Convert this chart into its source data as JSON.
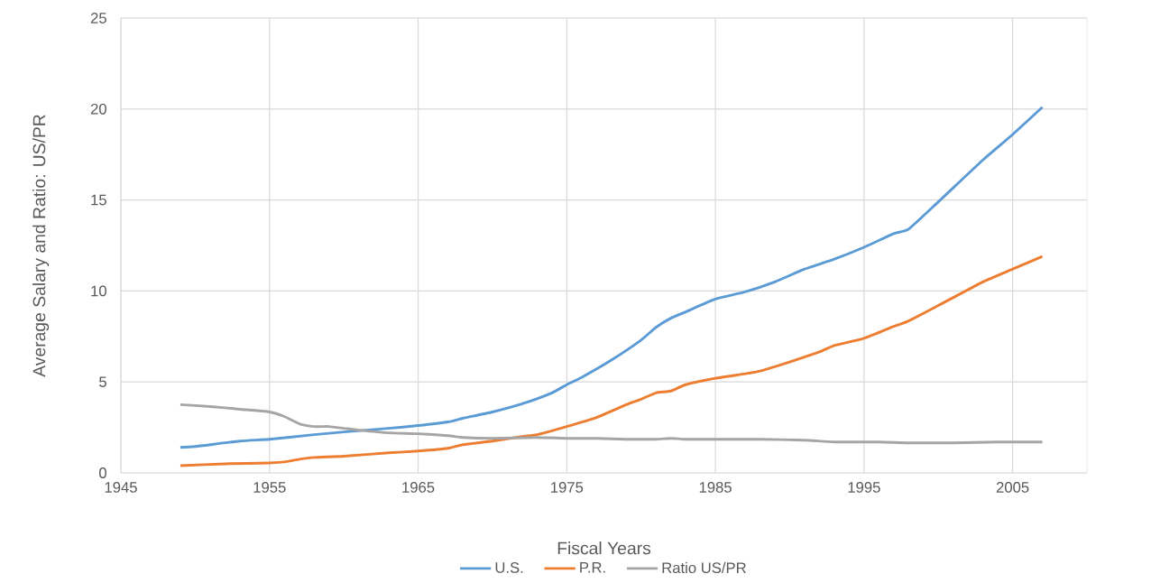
{
  "chart_data": {
    "type": "line",
    "xlabel": "Fiscal Years",
    "ylabel": "Average Salary and Ratio: US/PR",
    "xlim": [
      1945,
      2010
    ],
    "xticks": [
      1945,
      1955,
      1965,
      1975,
      1985,
      1995,
      2005
    ],
    "ylim": [
      0,
      25
    ],
    "yticks": [
      0,
      5,
      10,
      15,
      20,
      25
    ],
    "grid": true,
    "legend": "bottom",
    "series": [
      {
        "name": "U.S.",
        "color": "#5b9bd5",
        "x": [
          1949,
          1950,
          1953,
          1955,
          1958,
          1960,
          1963,
          1965,
          1967,
          1968,
          1970,
          1972,
          1974,
          1975,
          1976,
          1978,
          1980,
          1981,
          1982,
          1983,
          1985,
          1987,
          1989,
          1991,
          1993,
          1995,
          1997,
          1998,
          2000,
          2003,
          2005,
          2007
        ],
        "values": [
          1.4,
          1.45,
          1.75,
          1.85,
          2.1,
          2.25,
          2.45,
          2.6,
          2.8,
          3.0,
          3.35,
          3.8,
          4.4,
          4.85,
          5.25,
          6.2,
          7.3,
          8.0,
          8.5,
          8.85,
          9.55,
          9.95,
          10.5,
          11.2,
          11.75,
          12.4,
          13.15,
          13.4,
          14.9,
          17.2,
          18.6,
          20.1
        ]
      },
      {
        "name": "P.R.",
        "color": "#ed7d31",
        "x": [
          1949,
          1952,
          1955,
          1956,
          1957,
          1958,
          1960,
          1963,
          1965,
          1967,
          1968,
          1970,
          1972,
          1973,
          1975,
          1977,
          1979,
          1980,
          1981,
          1982,
          1983,
          1985,
          1987,
          1988,
          1990,
          1992,
          1993,
          1995,
          1997,
          1998,
          2000,
          2003,
          2005,
          2007
        ],
        "values": [
          0.4,
          0.5,
          0.55,
          0.6,
          0.75,
          0.85,
          0.92,
          1.1,
          1.2,
          1.35,
          1.55,
          1.75,
          2.0,
          2.1,
          2.55,
          3.05,
          3.75,
          4.05,
          4.4,
          4.5,
          4.85,
          5.2,
          5.45,
          5.6,
          6.1,
          6.65,
          7.0,
          7.4,
          8.05,
          8.35,
          9.2,
          10.5,
          11.2,
          11.9
        ]
      },
      {
        "name": "Ratio US/PR",
        "color": "#a5a5a5",
        "x": [
          1949,
          1951,
          1953,
          1955,
          1956,
          1957,
          1958,
          1959,
          1960,
          1961,
          1963,
          1965,
          1967,
          1968,
          1970,
          1973,
          1975,
          1977,
          1979,
          1981,
          1982,
          1983,
          1985,
          1988,
          1991,
          1993,
          1996,
          1998,
          2001,
          2004,
          2007
        ],
        "values": [
          3.75,
          3.65,
          3.5,
          3.35,
          3.1,
          2.7,
          2.55,
          2.55,
          2.45,
          2.35,
          2.2,
          2.15,
          2.05,
          1.95,
          1.9,
          1.95,
          1.9,
          1.9,
          1.85,
          1.85,
          1.9,
          1.85,
          1.85,
          1.85,
          1.8,
          1.7,
          1.7,
          1.65,
          1.65,
          1.7,
          1.7
        ]
      }
    ]
  }
}
